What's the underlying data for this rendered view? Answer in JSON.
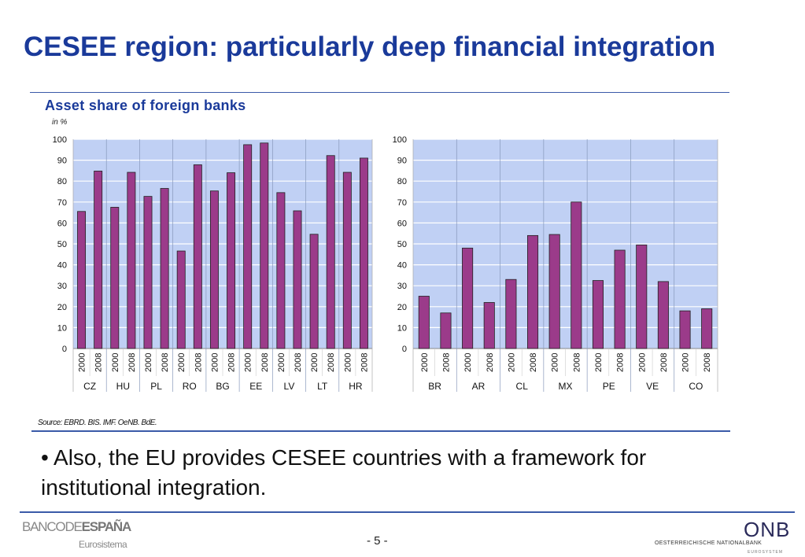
{
  "title": "CESEE region: particularly deep financial integration",
  "chart_title": "Asset share of foreign banks",
  "source": "Source: EBRD. BIS. IMF. OeNB. BdE.",
  "bullet": "• Also, the EU provides CESEE countries with a framework for institutional integration.",
  "footer": {
    "left_logo": "BANCO DE ESPAÑA",
    "left_logo_a": "BANCODE",
    "left_logo_b": "ESPAÑA",
    "left_sub": "Eurosistema",
    "page": "- 5 -",
    "right_logo": "ONB",
    "right_sub": "OESTERREICHISCHE NATIONALBANK",
    "right_sub2": "EUROSYSTEM"
  },
  "colors": {
    "bar": "#9b3b8a",
    "plot_bg": "#c0d0f4",
    "title": "#1a3a9a"
  },
  "chart_data": [
    {
      "type": "bar",
      "title": "Asset share of foreign banks",
      "ylabel": "in %",
      "ylim": [
        0,
        100
      ],
      "yticks": [
        0,
        10,
        20,
        30,
        40,
        50,
        60,
        70,
        80,
        90,
        100
      ],
      "grid": true,
      "years": [
        "2000",
        "2008"
      ],
      "categories": [
        "CZ",
        "HU",
        "PL",
        "RO",
        "BG",
        "EE",
        "LV",
        "LT",
        "HR"
      ],
      "values": [
        [
          65.5,
          84.8
        ],
        [
          67.5,
          84.2
        ],
        [
          72.7,
          76.5
        ],
        [
          46.6,
          87.8
        ],
        [
          75.3,
          84
        ],
        [
          97.4,
          98.2
        ],
        [
          74.5,
          65.8
        ],
        [
          54.6,
          92.2
        ],
        [
          84.2,
          91
        ]
      ]
    },
    {
      "type": "bar",
      "ylim": [
        0,
        100
      ],
      "yticks": [
        0,
        10,
        20,
        30,
        40,
        50,
        60,
        70,
        80,
        90,
        100
      ],
      "grid": true,
      "years": [
        "2000",
        "2008"
      ],
      "categories": [
        "BR",
        "AR",
        "CL",
        "MX",
        "PE",
        "VE",
        "CO"
      ],
      "values": [
        [
          25,
          17
        ],
        [
          48,
          22
        ],
        [
          33,
          54
        ],
        [
          54.5,
          70
        ],
        [
          32.5,
          47
        ],
        [
          49.5,
          32
        ],
        [
          18,
          19
        ]
      ]
    }
  ]
}
